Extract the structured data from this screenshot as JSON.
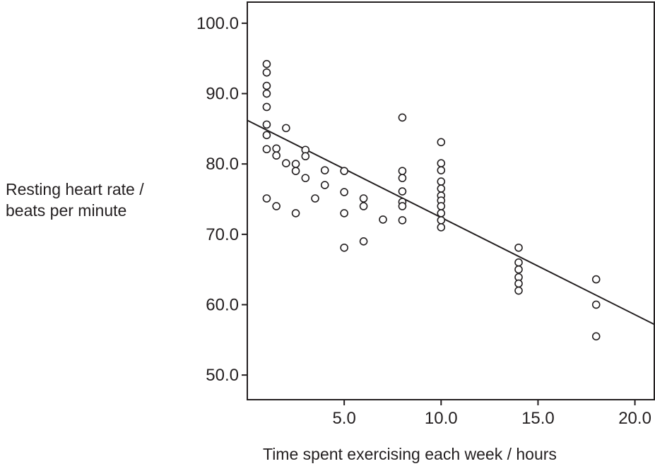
{
  "chart_data": {
    "type": "scatter",
    "title": "",
    "xlabel": "Time spent exercising each week / hours",
    "ylabel_lines": [
      "Resting heart rate /",
      "beats per minute"
    ],
    "xlim": [
      0,
      21
    ],
    "ylim": [
      46.5,
      103
    ],
    "x_ticks": [
      5,
      10,
      15,
      20
    ],
    "x_tick_labels": [
      "5.0",
      "10.0",
      "15.0",
      "20.0"
    ],
    "y_ticks": [
      50,
      60,
      70,
      80,
      90,
      100
    ],
    "y_tick_labels": [
      "50.0",
      "60.0",
      "70.0",
      "80.0",
      "90.0",
      "100.0"
    ],
    "grid": false,
    "fit_line": {
      "x": [
        0,
        21
      ],
      "y": [
        86.2,
        57.2
      ]
    },
    "points": [
      [
        1,
        94.2
      ],
      [
        1,
        93
      ],
      [
        1,
        91.1
      ],
      [
        1,
        90
      ],
      [
        1,
        88.1
      ],
      [
        1,
        85.6
      ],
      [
        1,
        84.1
      ],
      [
        1,
        82.1
      ],
      [
        1,
        75.1
      ],
      [
        1.5,
        82.2
      ],
      [
        1.5,
        81.2
      ],
      [
        1.5,
        74
      ],
      [
        2,
        85.1
      ],
      [
        2,
        80.1
      ],
      [
        2.5,
        80
      ],
      [
        2.5,
        79
      ],
      [
        2.5,
        73
      ],
      [
        3,
        82
      ],
      [
        3,
        81.1
      ],
      [
        3,
        78
      ],
      [
        3.5,
        75.1
      ],
      [
        4,
        79.1
      ],
      [
        4,
        77
      ],
      [
        5,
        79
      ],
      [
        5,
        76
      ],
      [
        5,
        73
      ],
      [
        5,
        68.1
      ],
      [
        6,
        75.1
      ],
      [
        6,
        74
      ],
      [
        6,
        69
      ],
      [
        7,
        72.1
      ],
      [
        8,
        86.6
      ],
      [
        8,
        79
      ],
      [
        8,
        78
      ],
      [
        8,
        76.1
      ],
      [
        8,
        74.6
      ],
      [
        8,
        74
      ],
      [
        8,
        72
      ],
      [
        10,
        83.1
      ],
      [
        10,
        80.1
      ],
      [
        10,
        79.1
      ],
      [
        10,
        77.5
      ],
      [
        10,
        76.5
      ],
      [
        10,
        75.5
      ],
      [
        10,
        74.8
      ],
      [
        10,
        74
      ],
      [
        10,
        73
      ],
      [
        10,
        72
      ],
      [
        10,
        71
      ],
      [
        14,
        68.1
      ],
      [
        14,
        66
      ],
      [
        14,
        65
      ],
      [
        14,
        63.9
      ],
      [
        14,
        63
      ],
      [
        14,
        62
      ],
      [
        18,
        63.6
      ],
      [
        18,
        60
      ],
      [
        18,
        55.5
      ]
    ]
  }
}
